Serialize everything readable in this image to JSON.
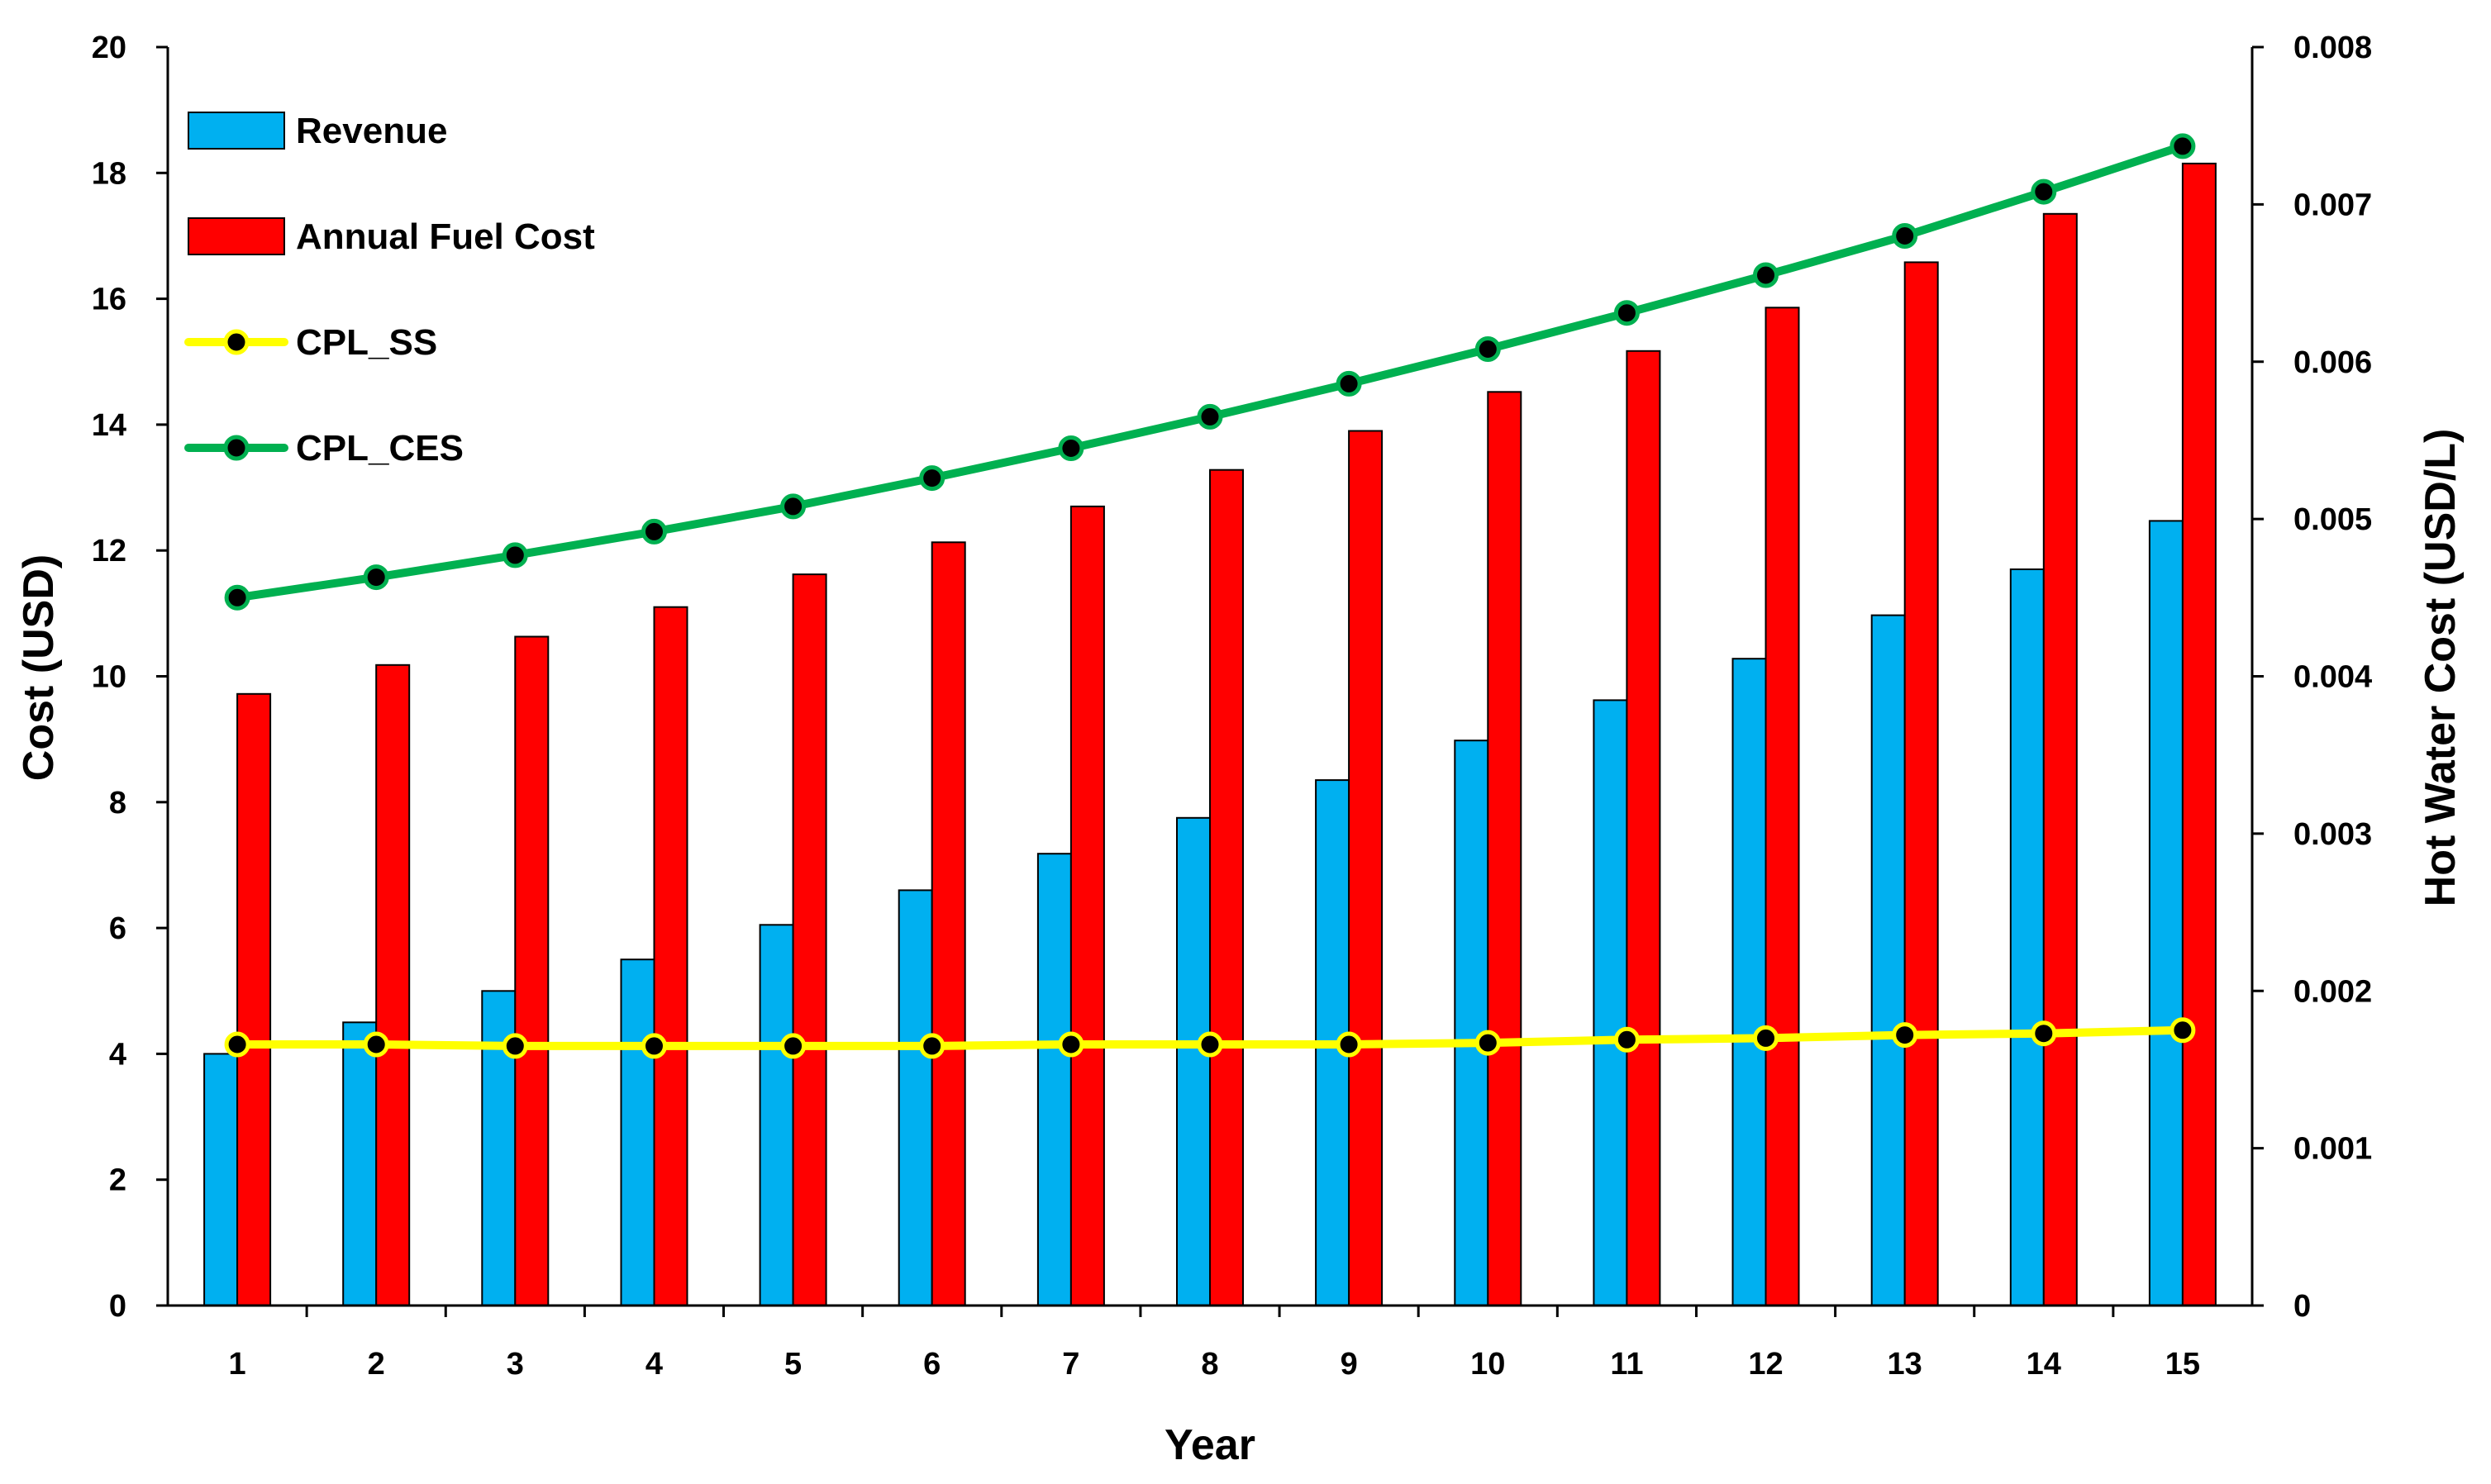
{
  "chart_data": {
    "type": "bar",
    "title": "",
    "categories": [
      "1",
      "2",
      "3",
      "4",
      "5",
      "6",
      "7",
      "8",
      "9",
      "10",
      "11",
      "12",
      "13",
      "14",
      "15"
    ],
    "xlabel": "Year",
    "ylabel": "Cost (USD)",
    "y2label": "Hot Water Cost (USD/L)",
    "ylim": [
      0,
      20
    ],
    "y2lim": [
      0,
      0.008
    ],
    "yticks": [
      "0",
      "2",
      "4",
      "6",
      "8",
      "10",
      "12",
      "14",
      "16",
      "18",
      "20"
    ],
    "y2ticks": [
      "0",
      "0.001",
      "0.002",
      "0.003",
      "0.004",
      "0.005",
      "0.006",
      "0.007",
      "0.008"
    ],
    "grid": false,
    "legend_position": "top-left",
    "series": [
      {
        "name": "Revenue",
        "kind": "bar",
        "axis": "left",
        "color": "#00B0F0",
        "values": [
          4.0,
          4.5,
          5.0,
          5.5,
          6.05,
          6.6,
          7.18,
          7.75,
          8.35,
          8.98,
          9.62,
          10.28,
          10.97,
          11.7,
          12.47
        ]
      },
      {
        "name": "Annual Fuel Cost",
        "kind": "bar",
        "axis": "left",
        "color": "#FF0000",
        "values": [
          9.72,
          10.18,
          10.63,
          11.1,
          11.62,
          12.13,
          12.7,
          13.28,
          13.9,
          14.52,
          15.17,
          15.86,
          16.58,
          17.35,
          18.15
        ]
      },
      {
        "name": "CPL_SS",
        "kind": "line",
        "axis": "right",
        "color": "#FFFF00",
        "values": [
          0.00166,
          0.00166,
          0.00165,
          0.00165,
          0.00165,
          0.00165,
          0.00166,
          0.00166,
          0.00166,
          0.00167,
          0.00169,
          0.0017,
          0.00172,
          0.00173,
          0.00175
        ]
      },
      {
        "name": "CPL_CES",
        "kind": "line",
        "axis": "right",
        "color": "#00B050",
        "values": [
          0.0045,
          0.00463,
          0.00477,
          0.00492,
          0.00508,
          0.00526,
          0.00545,
          0.00565,
          0.00586,
          0.00608,
          0.00631,
          0.00655,
          0.0068,
          0.00708,
          0.00737
        ]
      }
    ]
  }
}
